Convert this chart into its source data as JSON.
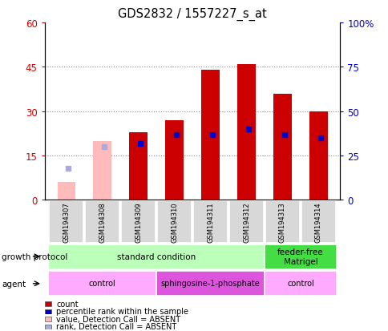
{
  "title": "GDS2832 / 1557227_s_at",
  "samples": [
    "GSM194307",
    "GSM194308",
    "GSM194309",
    "GSM194310",
    "GSM194311",
    "GSM194312",
    "GSM194313",
    "GSM194314"
  ],
  "count_values": [
    null,
    null,
    23,
    27,
    44,
    46,
    36,
    30
  ],
  "count_absent": [
    6,
    20,
    null,
    null,
    null,
    null,
    null,
    null
  ],
  "percentile_values": [
    null,
    null,
    32,
    37,
    37,
    40,
    37,
    35
  ],
  "percentile_absent": [
    18,
    30,
    null,
    null,
    null,
    null,
    null,
    null
  ],
  "ylim_left": [
    0,
    60
  ],
  "ylim_right": [
    0,
    100
  ],
  "yticks_left": [
    0,
    15,
    30,
    45,
    60
  ],
  "yticks_right": [
    0,
    25,
    50,
    75,
    100
  ],
  "color_count": "#cc0000",
  "color_percentile": "#0000cc",
  "color_count_absent": "#ffbbbb",
  "color_percentile_absent": "#aaaadd",
  "growth_protocol_groups": [
    {
      "label": "standard condition",
      "start": 0,
      "end": 6,
      "color": "#bbffbb"
    },
    {
      "label": "feeder-free\nMatrigel",
      "start": 6,
      "end": 8,
      "color": "#44dd44"
    }
  ],
  "agent_groups": [
    {
      "label": "control",
      "start": 0,
      "end": 3,
      "color": "#ffaaff"
    },
    {
      "label": "sphingosine-1-phosphate",
      "start": 3,
      "end": 6,
      "color": "#dd55dd"
    },
    {
      "label": "control",
      "start": 6,
      "end": 8,
      "color": "#ffaaff"
    }
  ],
  "legend_items": [
    {
      "label": "count",
      "color": "#cc0000"
    },
    {
      "label": "percentile rank within the sample",
      "color": "#0000cc"
    },
    {
      "label": "value, Detection Call = ABSENT",
      "color": "#ffbbbb"
    },
    {
      "label": "rank, Detection Call = ABSENT",
      "color": "#aaaadd"
    }
  ],
  "bar_width": 0.5
}
